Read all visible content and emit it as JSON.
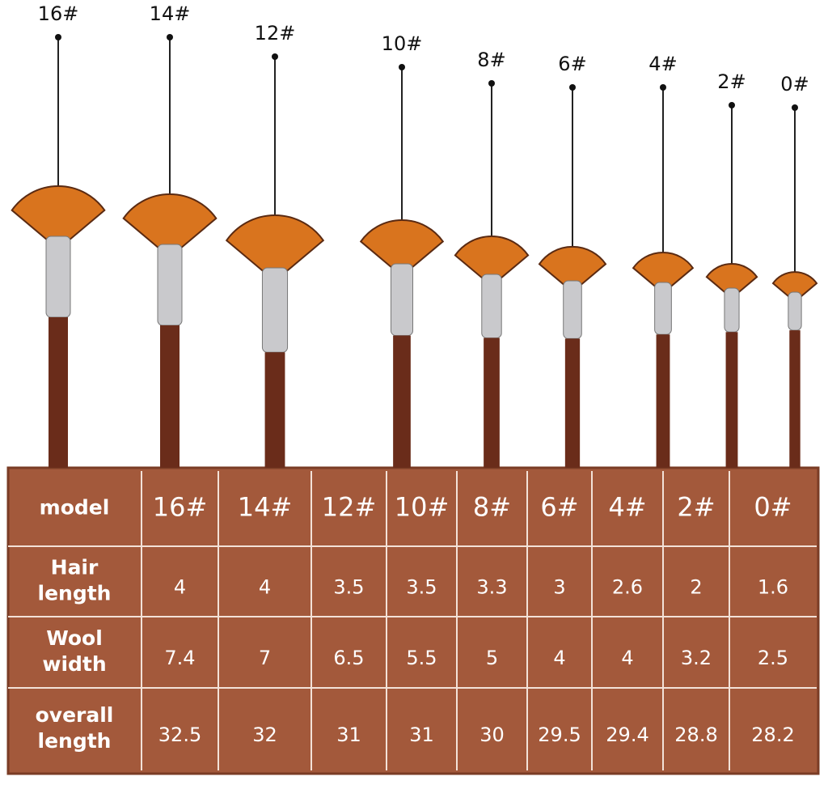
{
  "brushes": {
    "labels": [
      "16#",
      "14#",
      "12#",
      "10#",
      "8#",
      "6#",
      "4#",
      "2#",
      "0#"
    ]
  },
  "table": {
    "header": {
      "label": [
        "model"
      ],
      "cells": [
        "16#",
        "14#",
        "12#",
        "10#",
        "8#",
        "6#",
        "4#",
        "2#",
        "0#"
      ]
    },
    "rows": [
      {
        "label": [
          "Hair",
          "length"
        ],
        "cells": [
          "4",
          "4",
          "3.5",
          "3.5",
          "3.3",
          "3",
          "2.6",
          "2",
          "1.6"
        ]
      },
      {
        "label": [
          "Wool",
          "width"
        ],
        "cells": [
          "7.4",
          "7",
          "6.5",
          "5.5",
          "5",
          "4",
          "4",
          "3.2",
          "2.5"
        ]
      },
      {
        "label": [
          "overall",
          "length"
        ],
        "cells": [
          "32.5",
          "32",
          "31",
          "31",
          "30",
          "29.5",
          "29.4",
          "28.8",
          "28.2"
        ]
      }
    ]
  }
}
